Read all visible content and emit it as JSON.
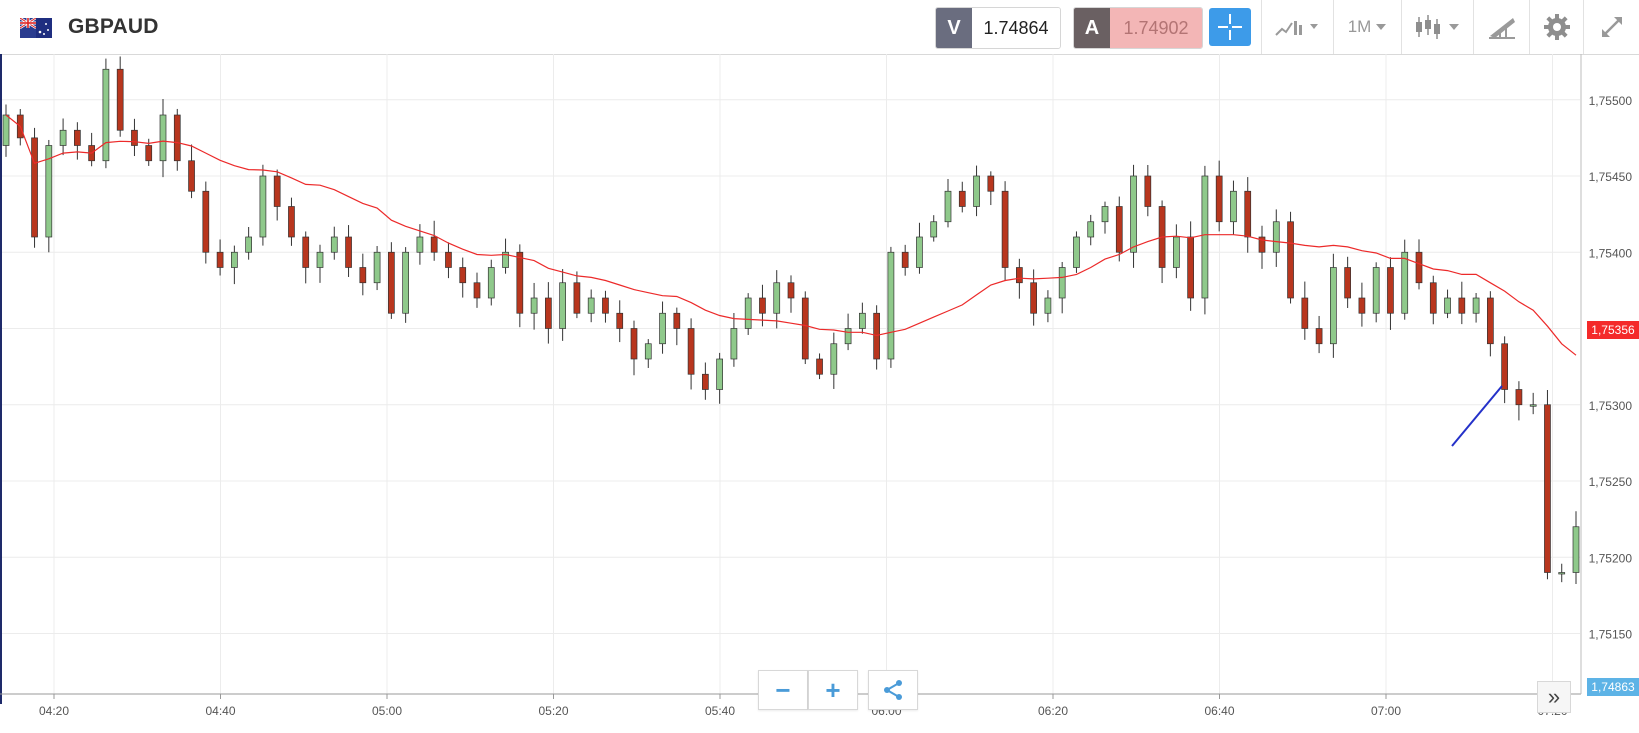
{
  "header": {
    "symbol": "GBPAUD",
    "sell_tag": "V",
    "sell_price": "1.74864",
    "buy_tag": "A",
    "buy_price": "1.74902",
    "timeframe": "1M",
    "icons": [
      "flag-icon",
      "crosshair-icon",
      "indicators-icon",
      "timeframe-icon",
      "chart-type-icon",
      "draw-icon",
      "gear-icon",
      "expand-icon"
    ]
  },
  "controls": {
    "zoom_out": "−",
    "zoom_in": "+",
    "share_icon": "share-icon",
    "scroll_forward": "»"
  },
  "colors": {
    "bull": "#8fc98b",
    "bear": "#b8361e",
    "ma_line": "#ec2a2a",
    "drawing": "#2431c9",
    "ma_tag": "#f42a2a",
    "last_price_tag": "#5db3e6",
    "accent": "#3d9be9"
  },
  "chart_data": {
    "type": "candlestick",
    "x_tick_labels": [
      "04:20",
      "04:40",
      "05:00",
      "05:20",
      "05:40",
      "06:00",
      "06:20",
      "06:40",
      "07:00",
      "07:20"
    ],
    "y_tick_labels": [
      "1,75500",
      "1,75450",
      "1,75400",
      "1,75350",
      "1,75300",
      "1,75250",
      "1,75200",
      "1,75150"
    ],
    "y_ticks": [
      1.755,
      1.7545,
      1.754,
      1.7535,
      1.753,
      1.7525,
      1.752,
      1.7515
    ],
    "ylim": [
      1.7513,
      1.7553
    ],
    "ma_value_label": "1,75356",
    "ma_value": 1.75356,
    "last_price_label": "1,74863",
    "grid": true,
    "candles_close_approx": [
      1.7549,
      1.75475,
      1.7541,
      1.7547,
      1.7548,
      1.7547,
      1.7546,
      1.7552,
      1.7548,
      1.7547,
      1.7546,
      1.7549,
      1.7546,
      1.7544,
      1.754,
      1.7539,
      1.754,
      1.7541,
      1.7545,
      1.7543,
      1.7541,
      1.7539,
      1.754,
      1.7541,
      1.7539,
      1.7538,
      1.754,
      1.7536,
      1.754,
      1.7541,
      1.754,
      1.7539,
      1.7538,
      1.7537,
      1.7539,
      1.754,
      1.7536,
      1.7537,
      1.7535,
      1.7538,
      1.7536,
      1.7537,
      1.7536,
      1.7535,
      1.7533,
      1.7534,
      1.7536,
      1.7535,
      1.7532,
      1.7531,
      1.7533,
      1.7535,
      1.7537,
      1.7536,
      1.7538,
      1.7537,
      1.7533,
      1.7532,
      1.7534,
      1.7535,
      1.7536,
      1.7533,
      1.754,
      1.7539,
      1.7541,
      1.7542,
      1.7544,
      1.7543,
      1.7545,
      1.7544,
      1.7539,
      1.7538,
      1.7536,
      1.7537,
      1.7539,
      1.7541,
      1.7542,
      1.7543,
      1.754,
      1.7545,
      1.7543,
      1.7539,
      1.7541,
      1.7537,
      1.7545,
      1.7542,
      1.7544,
      1.7541,
      1.754,
      1.7542,
      1.7537,
      1.7535,
      1.7534,
      1.7539,
      1.7537,
      1.7536,
      1.7539,
      1.7536,
      1.754,
      1.7538,
      1.7536,
      1.7537,
      1.7536,
      1.7537,
      1.7534,
      1.7531,
      1.753,
      1.753,
      1.7519,
      1.7519,
      1.7522
    ]
  }
}
